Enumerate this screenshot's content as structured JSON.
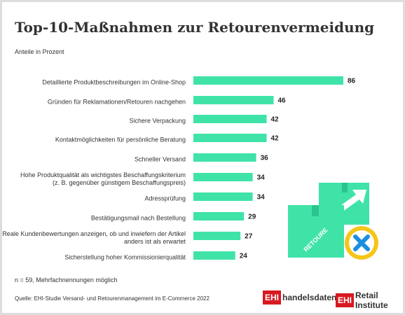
{
  "chart_data": {
    "type": "bar",
    "orientation": "horizontal",
    "title": "Top-10-Maßnahmen zur Retourenvermeidung",
    "subtitle": "Anteile in Prozent",
    "categories": [
      "Detaillierte Produktbeschreibungen im Online-Shop",
      "Gründen für Reklamationen/Retouren nachgehen",
      "Sichere Verpackung",
      "Kontaktmöglichkeiten für persönliche Beratung",
      "Schneller Versand",
      "Hohe Produktqualität als wichtigstes Beschaffungskriterium\n(z. B. gegenüber günstigem Beschaffungspreis)",
      "Adressprüfung",
      "Bestätigungsmail nach Bestellung",
      "Reale Kundenbewertungen anzeigen, ob und inwiefern der Artikel\nanders ist als erwartet",
      "Sicherstellung hoher Kommissionierqualität"
    ],
    "values": [
      86,
      46,
      42,
      42,
      36,
      34,
      34,
      29,
      27,
      24
    ],
    "color": "#3fe3a8",
    "xlim": [
      0,
      86
    ],
    "footnote": "n = 59, Mehrfachnennungen möglich",
    "source": "Quelle: EHI-Studie Versand- und Retourenmanagement im E-Commerce 2022",
    "illustration_label": "RETOURE",
    "logos": [
      {
        "badge": "EHI",
        "text": "handelsdaten.de"
      },
      {
        "badge": "EHI",
        "text": "Retail Institute"
      }
    ]
  }
}
